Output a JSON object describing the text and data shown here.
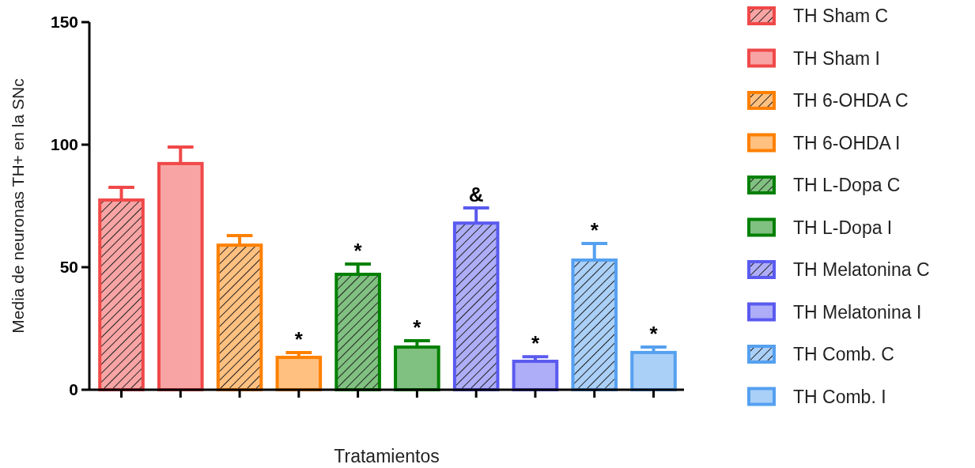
{
  "chart_data": {
    "type": "bar",
    "xlabel": "Tratamientos",
    "ylabel": "Media de neuronas TH+ en la SNc",
    "ylim": [
      0,
      150
    ],
    "yticks": [
      0,
      50,
      100,
      150
    ],
    "legend": "right",
    "categories": [
      null,
      null,
      null,
      null,
      null,
      null,
      null,
      null,
      null,
      null
    ],
    "series": [
      {
        "name": "TH Sham C",
        "color": "#f04848",
        "values": [
          77.4,
          null,
          null,
          null,
          null,
          null,
          null,
          null,
          null,
          null
        ],
        "errors": [
          5.2,
          null,
          null,
          null,
          null,
          null,
          null,
          null,
          null,
          null
        ]
      },
      {
        "name": "TH Sham I",
        "color": "#f04848",
        "values": [
          null,
          92.3,
          null,
          null,
          null,
          null,
          null,
          null,
          null,
          null
        ],
        "errors": [
          null,
          6.7,
          null,
          null,
          null,
          null,
          null,
          null,
          null,
          null
        ]
      },
      {
        "name": "TH 6-OHDA C",
        "color": "#ff8000",
        "values": [
          null,
          null,
          59,
          null,
          null,
          null,
          null,
          null,
          null,
          null
        ],
        "errors": [
          null,
          null,
          3.9,
          null,
          null,
          null,
          null,
          null,
          null,
          null
        ]
      },
      {
        "name": "TH 6-OHDA I",
        "color": "#ff8000",
        "values": [
          null,
          null,
          null,
          13.2,
          null,
          null,
          null,
          null,
          null,
          null
        ],
        "errors": [
          null,
          null,
          null,
          2,
          null,
          null,
          null,
          null,
          null,
          null
        ],
        "value_labels": [
          null,
          null,
          null,
          "*",
          null,
          null,
          null,
          null,
          null,
          null
        ]
      },
      {
        "name": "TH L-Dopa C",
        "color": "#008000",
        "values": [
          null,
          null,
          null,
          null,
          47.1,
          null,
          null,
          null,
          null,
          null
        ],
        "errors": [
          null,
          null,
          null,
          null,
          4.2,
          null,
          null,
          null,
          null,
          null
        ],
        "value_labels": [
          null,
          null,
          null,
          null,
          "*",
          null,
          null,
          null,
          null,
          null
        ]
      },
      {
        "name": "TH L-Dopa I",
        "color": "#008000",
        "values": [
          null,
          null,
          null,
          null,
          null,
          17.4,
          null,
          null,
          null,
          null
        ],
        "errors": [
          null,
          null,
          null,
          null,
          null,
          2.6,
          null,
          null,
          null,
          null
        ],
        "value_labels": [
          null,
          null,
          null,
          null,
          null,
          "*",
          null,
          null,
          null,
          null
        ]
      },
      {
        "name": "TH Melatonina C",
        "color": "#5a5af0",
        "values": [
          null,
          null,
          null,
          null,
          null,
          null,
          68,
          null,
          null,
          null
        ],
        "errors": [
          null,
          null,
          null,
          null,
          null,
          null,
          6.2,
          null,
          null,
          null
        ],
        "value_labels": [
          null,
          null,
          null,
          null,
          null,
          null,
          "&",
          null,
          null,
          null
        ]
      },
      {
        "name": "TH Melatonina I",
        "color": "#5a5af0",
        "values": [
          null,
          null,
          null,
          null,
          null,
          null,
          null,
          11.6,
          null,
          null
        ],
        "errors": [
          null,
          null,
          null,
          null,
          null,
          null,
          null,
          1.9,
          null,
          null
        ],
        "value_labels": [
          null,
          null,
          null,
          null,
          null,
          null,
          null,
          "*",
          null,
          null
        ]
      },
      {
        "name": "TH Comb. C",
        "color": "#55a0f0",
        "values": [
          null,
          null,
          null,
          null,
          null,
          null,
          null,
          null,
          52.9,
          null
        ],
        "errors": [
          null,
          null,
          null,
          null,
          null,
          null,
          null,
          null,
          6.8,
          null
        ],
        "value_labels": [
          null,
          null,
          null,
          null,
          null,
          null,
          null,
          null,
          "*",
          null
        ]
      },
      {
        "name": "TH Comb. I",
        "color": "#55a0f0",
        "values": [
          null,
          null,
          null,
          null,
          null,
          null,
          null,
          null,
          null,
          15.2
        ],
        "errors": [
          null,
          null,
          null,
          null,
          null,
          null,
          null,
          null,
          null,
          2.2
        ],
        "value_labels": [
          null,
          null,
          null,
          null,
          null,
          null,
          null,
          null,
          null,
          "*"
        ]
      }
    ]
  }
}
